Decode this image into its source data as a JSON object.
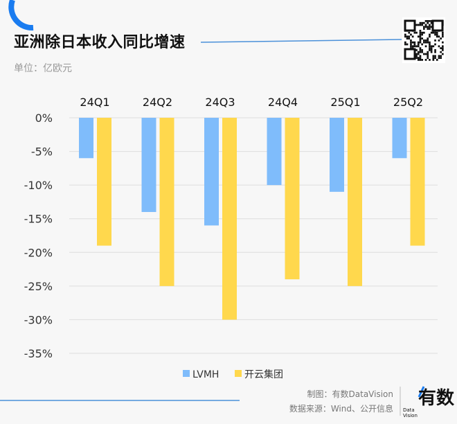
{
  "title": "亚洲除日本收入同比增速",
  "subtitle": "单位：亿欧元",
  "credits": {
    "made_by": "制图：有数DataVision",
    "source": "数据来源：Wind、公开信息"
  },
  "logo": {
    "text": "有数",
    "sub": "Data Vision"
  },
  "chart_data": {
    "type": "bar",
    "categories": [
      "24Q1",
      "24Q2",
      "24Q3",
      "24Q4",
      "25Q1",
      "25Q2"
    ],
    "series": [
      {
        "name": "LVMH",
        "values": [
          -6,
          -14,
          -16,
          -10,
          -11,
          -6
        ],
        "color": "#7fbcfb"
      },
      {
        "name": "开云集团",
        "values": [
          -19,
          -25,
          -30,
          -24,
          -25,
          -19
        ],
        "color": "#ffd84d"
      }
    ],
    "ylim": [
      -35,
      0
    ],
    "yticks": [
      "0%",
      "-5%",
      "-10%",
      "-15%",
      "-20%",
      "-25%",
      "-30%",
      "-35%"
    ],
    "grid": true,
    "legend": "bottom"
  },
  "colors": {
    "accent": "#1a7cf0"
  }
}
